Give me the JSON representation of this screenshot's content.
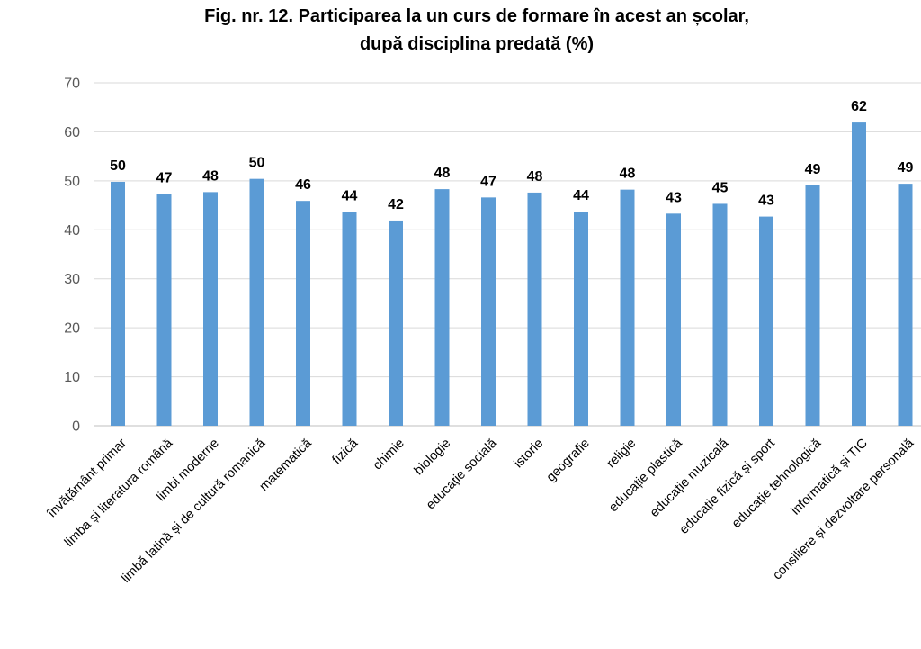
{
  "chart_data": {
    "type": "bar",
    "title_lines": [
      "Fig. nr. 12. Participarea la un curs de formare în acest an școlar,",
      "după disciplina predată (%)"
    ],
    "categories": [
      "învățământ primar",
      "limba și literatura română",
      "limbi moderne",
      "limbă latină și de cultură romanică",
      "matematică",
      "fizică",
      "chimie",
      "biologie",
      "educație socială",
      "istorie",
      "geografie",
      "religie",
      "educație plastică",
      "educație muzicală",
      "educație fizică și sport",
      "educație tehnologică",
      "informatică și TIC",
      "consiliere și dezvoltare personală"
    ],
    "values": [
      49.8,
      47.3,
      47.7,
      50.4,
      45.9,
      43.6,
      41.9,
      48.3,
      46.6,
      47.6,
      43.7,
      48.2,
      43.3,
      45.3,
      42.7,
      49.1,
      61.9,
      49.4
    ],
    "data_labels": [
      "50",
      "47",
      "48",
      "50",
      "46",
      "44",
      "42",
      "48",
      "47",
      "48",
      "44",
      "48",
      "43",
      "45",
      "43",
      "49",
      "62",
      "49"
    ],
    "ylim": [
      0,
      70
    ],
    "yticks": [
      "0",
      "10",
      "20",
      "30",
      "40",
      "50",
      "60",
      "70"
    ],
    "grid": true,
    "bar_color": "#5b9bd5",
    "grid_color": "#d9d9d9"
  }
}
